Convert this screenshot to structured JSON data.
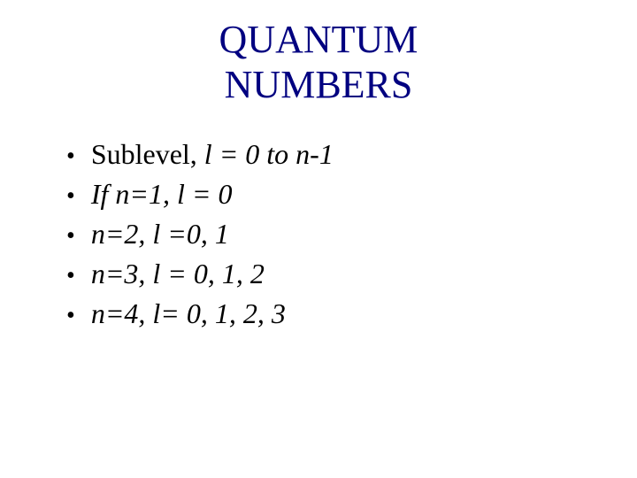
{
  "title": {
    "line1": "QUANTUM",
    "line2": "NUMBERS",
    "color": "#000080",
    "fontsize": 44
  },
  "bullets": [
    {
      "prefix": "Sublevel, ",
      "italic": "l = 0 to n-1"
    },
    {
      "prefix": "",
      "italic": "If n=1, l = 0"
    },
    {
      "prefix": "",
      "italic": "n=2, l =0, 1"
    },
    {
      "prefix": "",
      "italic": "n=3, l = 0, 1, 2"
    },
    {
      "prefix": "",
      "italic": "n=4, l= 0, 1, 2, 3"
    }
  ],
  "text_color": "#000000",
  "background_color": "#ffffff",
  "bullet_fontsize": 32
}
